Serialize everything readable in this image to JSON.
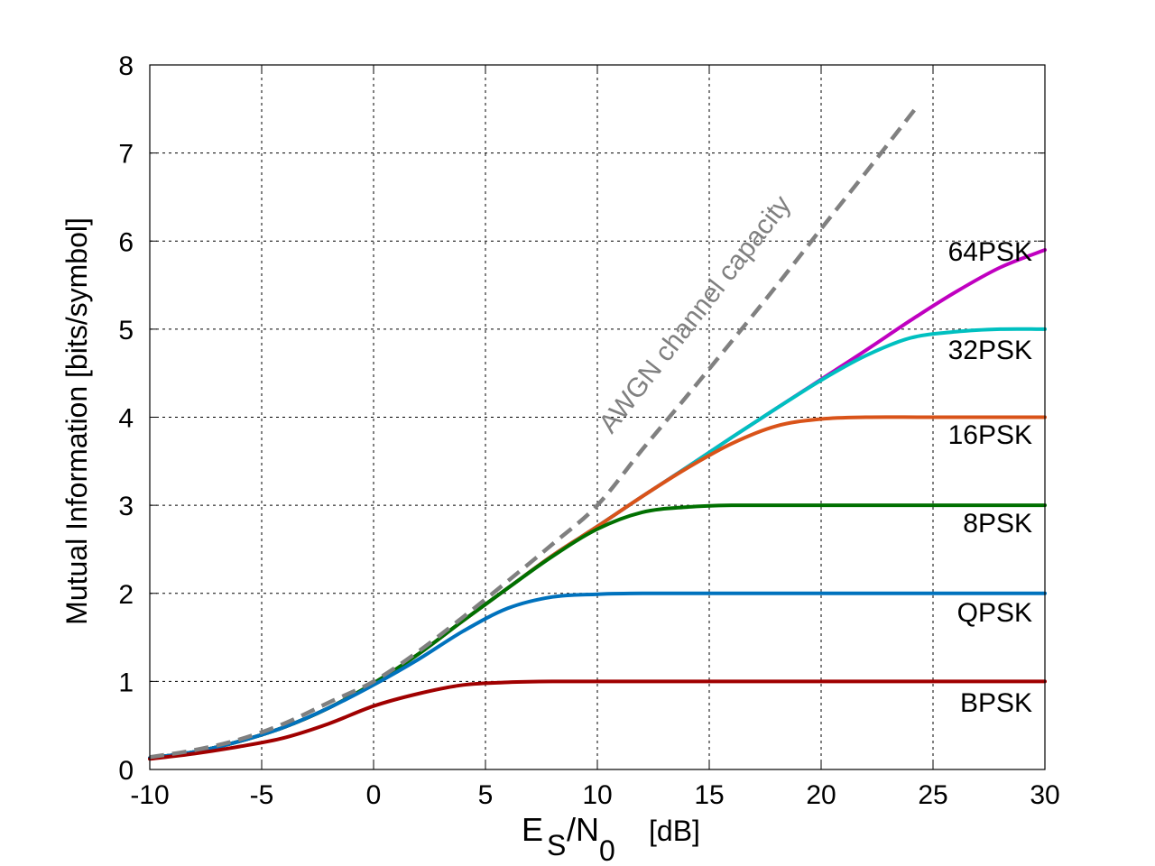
{
  "chart_data": {
    "type": "line",
    "title": "",
    "xlabel_main": "E",
    "xlabel_sub1": "S",
    "xlabel_mid": "/N",
    "xlabel_sub2": "0",
    "xlabel_unit": "[dB]",
    "ylabel": "Mutual Information [bits/symbol]",
    "xlim": [
      -10,
      30
    ],
    "ylim": [
      0,
      8
    ],
    "x_ticks": [
      "-10",
      "-5",
      "0",
      "5",
      "10",
      "15",
      "20",
      "25",
      "30"
    ],
    "y_ticks": [
      "0",
      "1",
      "2",
      "3",
      "4",
      "5",
      "6",
      "7",
      "8"
    ],
    "grid": true,
    "annotation": "AWGN channel capacity",
    "capacity_color": "#808080",
    "series": [
      {
        "name": "BPSK",
        "color": "#a00000",
        "x": [
          -10,
          -8,
          -6,
          -4,
          -2,
          0,
          2,
          4,
          6,
          8,
          10,
          15,
          20,
          25,
          30
        ],
        "y": [
          0.12,
          0.18,
          0.26,
          0.36,
          0.52,
          0.72,
          0.86,
          0.96,
          0.99,
          1.0,
          1.0,
          1.0,
          1.0,
          1.0,
          1.0
        ]
      },
      {
        "name": "QPSK",
        "color": "#0072bd",
        "x": [
          -10,
          -8,
          -6,
          -4,
          -2,
          0,
          2,
          4,
          6,
          8,
          10,
          12,
          15,
          20,
          25,
          30
        ],
        "y": [
          0.13,
          0.2,
          0.32,
          0.48,
          0.7,
          0.96,
          1.25,
          1.57,
          1.83,
          1.96,
          1.99,
          2.0,
          2.0,
          2.0,
          2.0,
          2.0
        ]
      },
      {
        "name": "8PSK",
        "color": "#007000",
        "x": [
          -10,
          -8,
          -6,
          -4,
          -2,
          0,
          2,
          4,
          6,
          8,
          10,
          12,
          14,
          16,
          20,
          25,
          30
        ],
        "y": [
          0.13,
          0.2,
          0.32,
          0.48,
          0.7,
          0.98,
          1.31,
          1.69,
          2.06,
          2.42,
          2.73,
          2.92,
          2.98,
          3.0,
          3.0,
          3.0,
          3.0
        ]
      },
      {
        "name": "16PSK",
        "color": "#d95319",
        "x": [
          -10,
          -8,
          -6,
          -4,
          -2,
          0,
          2,
          4,
          6,
          8,
          10,
          12,
          14,
          16,
          18,
          20,
          22,
          25,
          30
        ],
        "y": [
          0.13,
          0.2,
          0.32,
          0.48,
          0.7,
          0.98,
          1.31,
          1.69,
          2.06,
          2.43,
          2.76,
          3.1,
          3.42,
          3.7,
          3.9,
          3.98,
          4.0,
          4.0,
          4.0
        ]
      },
      {
        "name": "32PSK",
        "color": "#00c0c0",
        "x": [
          -10,
          -8,
          -6,
          -4,
          -2,
          0,
          2,
          4,
          6,
          8,
          10,
          12,
          14,
          16,
          18,
          20,
          22,
          24,
          26,
          28,
          30
        ],
        "y": [
          0.13,
          0.2,
          0.32,
          0.48,
          0.7,
          0.98,
          1.31,
          1.69,
          2.06,
          2.43,
          2.76,
          3.1,
          3.43,
          3.77,
          4.1,
          4.42,
          4.7,
          4.9,
          4.97,
          5.0,
          5.0
        ]
      },
      {
        "name": "64PSK",
        "color": "#c000c0",
        "x": [
          -10,
          -8,
          -6,
          -4,
          -2,
          0,
          2,
          4,
          6,
          8,
          10,
          12,
          14,
          16,
          18,
          20,
          22,
          24,
          26,
          28,
          30
        ],
        "y": [
          0.13,
          0.2,
          0.32,
          0.48,
          0.7,
          0.98,
          1.31,
          1.69,
          2.06,
          2.43,
          2.76,
          3.1,
          3.43,
          3.77,
          4.1,
          4.43,
          4.76,
          5.1,
          5.42,
          5.7,
          5.9
        ]
      }
    ],
    "capacity": {
      "x": [
        -10,
        -8,
        -6,
        -4,
        -2,
        0,
        2,
        4,
        6,
        8,
        10,
        12,
        14,
        16,
        18,
        20,
        22,
        24.2
      ],
      "y": [
        0.14,
        0.22,
        0.34,
        0.52,
        0.76,
        1.0,
        1.34,
        1.73,
        2.14,
        2.56,
        3.0,
        3.63,
        4.24,
        4.86,
        5.49,
        6.14,
        6.78,
        7.5
      ]
    }
  }
}
